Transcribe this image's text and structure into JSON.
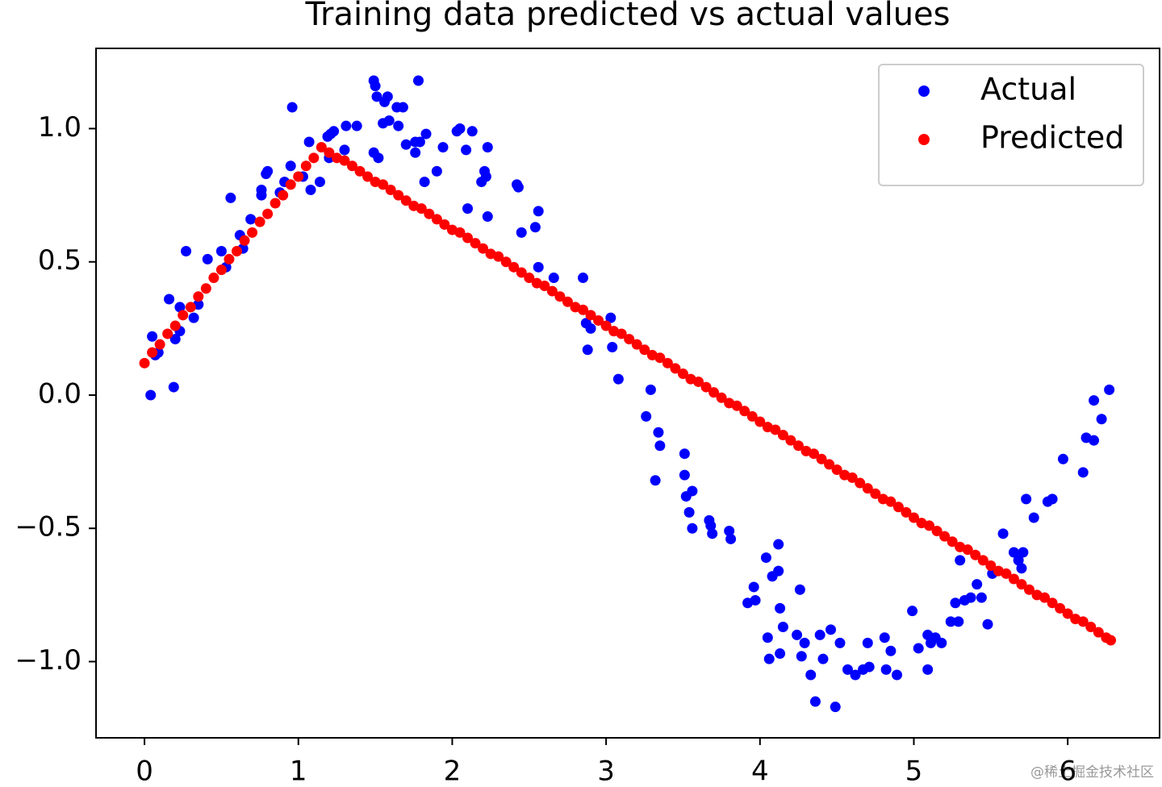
{
  "chart_data": {
    "type": "scatter",
    "title": "Training data predicted vs actual values",
    "xlim": [
      -0.315,
      6.597
    ],
    "ylim": [
      -1.286,
      1.301
    ],
    "xticks": [
      0,
      1,
      2,
      3,
      4,
      5,
      6
    ],
    "yticks": [
      {
        "value": -1.0,
        "label": "−1.0"
      },
      {
        "value": -0.5,
        "label": "−0.5"
      },
      {
        "value": 0.0,
        "label": "0.0"
      },
      {
        "value": 0.5,
        "label": "0.5"
      },
      {
        "value": 1.0,
        "label": "1.0"
      }
    ],
    "grid": false,
    "legend": "upper right",
    "watermark": "@稀土掘金技术社区",
    "series": [
      {
        "name": "Actual",
        "color": "#0000ff",
        "x": [
          0.04,
          0.05,
          0.07,
          0.09,
          0.16,
          0.19,
          0.2,
          0.23,
          0.23,
          0.27,
          0.32,
          0.35,
          0.41,
          0.5,
          0.53,
          0.56,
          0.62,
          0.64,
          0.69,
          0.76,
          0.76,
          0.79,
          0.8,
          0.88,
          0.91,
          0.95,
          0.96,
          1.03,
          1.07,
          1.08,
          1.14,
          1.19,
          1.2,
          1.21,
          1.23,
          1.3,
          1.31,
          1.38,
          1.49,
          1.49,
          1.5,
          1.51,
          1.52,
          1.55,
          1.56,
          1.58,
          1.59,
          1.64,
          1.65,
          1.68,
          1.7,
          1.76,
          1.76,
          1.78,
          1.79,
          1.83,
          1.82,
          1.9,
          1.94,
          2.03,
          2.05,
          2.09,
          2.1,
          2.13,
          2.19,
          2.21,
          2.22,
          2.23,
          2.23,
          2.42,
          2.43,
          2.56,
          2.54,
          2.45,
          2.56,
          2.66,
          2.85,
          2.87,
          2.88,
          2.9,
          3.03,
          3.04,
          3.08,
          3.26,
          3.29,
          3.32,
          3.34,
          3.35,
          3.51,
          3.51,
          3.52,
          3.54,
          3.56,
          3.56,
          3.67,
          3.68,
          3.69,
          3.8,
          3.81,
          3.92,
          3.97,
          3.96,
          4.04,
          4.05,
          4.06,
          4.08,
          4.12,
          4.12,
          4.13,
          4.13,
          4.15,
          4.26,
          4.24,
          4.27,
          4.29,
          4.33,
          4.36,
          4.39,
          4.41,
          4.46,
          4.49,
          4.52,
          4.57,
          4.62,
          4.67,
          4.7,
          4.71,
          4.81,
          4.82,
          4.85,
          4.89,
          4.99,
          5.03,
          5.09,
          5.09,
          5.11,
          5.14,
          5.18,
          5.24,
          5.27,
          5.3,
          5.29,
          5.33,
          5.37,
          5.41,
          5.44,
          5.48,
          5.51,
          5.58,
          5.65,
          5.68,
          5.7,
          5.71,
          5.73,
          5.78,
          5.87,
          5.9,
          5.97,
          6.1,
          6.12,
          6.17,
          6.17,
          6.22,
          6.27
        ],
        "values": [
          0.0,
          0.22,
          0.15,
          0.16,
          0.36,
          0.03,
          0.21,
          0.24,
          0.33,
          0.54,
          0.29,
          0.34,
          0.51,
          0.54,
          0.48,
          0.74,
          0.6,
          0.55,
          0.66,
          0.75,
          0.77,
          0.83,
          0.84,
          0.76,
          0.8,
          0.86,
          1.08,
          0.82,
          0.95,
          0.77,
          0.8,
          0.97,
          0.89,
          0.98,
          0.99,
          0.92,
          1.01,
          1.01,
          1.18,
          0.91,
          1.16,
          1.12,
          0.89,
          1.02,
          1.1,
          1.12,
          1.03,
          1.08,
          1.01,
          1.08,
          0.94,
          0.95,
          0.91,
          1.18,
          0.95,
          0.98,
          0.8,
          0.84,
          0.93,
          0.99,
          1.0,
          0.92,
          0.7,
          0.99,
          0.8,
          0.84,
          0.82,
          0.67,
          0.93,
          0.79,
          0.78,
          0.69,
          0.63,
          0.61,
          0.48,
          0.44,
          0.44,
          0.27,
          0.17,
          0.25,
          0.29,
          0.18,
          0.06,
          -0.08,
          0.02,
          -0.32,
          -0.14,
          -0.19,
          -0.22,
          -0.3,
          -0.38,
          -0.44,
          -0.5,
          -0.36,
          -0.47,
          -0.49,
          -0.52,
          -0.51,
          -0.54,
          -0.78,
          -0.77,
          -0.72,
          -0.61,
          -0.91,
          -0.99,
          -0.68,
          -0.66,
          -0.56,
          -0.97,
          -0.8,
          -0.87,
          -0.73,
          -0.9,
          -0.98,
          -0.93,
          -1.05,
          -1.15,
          -0.9,
          -0.99,
          -0.88,
          -1.17,
          -0.93,
          -1.03,
          -1.05,
          -1.03,
          -0.93,
          -1.02,
          -0.91,
          -1.03,
          -0.96,
          -1.05,
          -0.81,
          -0.95,
          -1.03,
          -0.9,
          -0.93,
          -0.91,
          -0.93,
          -0.85,
          -0.78,
          -0.62,
          -0.85,
          -0.77,
          -0.76,
          -0.71,
          -0.76,
          -0.86,
          -0.67,
          -0.52,
          -0.59,
          -0.62,
          -0.65,
          -0.59,
          -0.39,
          -0.46,
          -0.4,
          -0.39,
          -0.24,
          -0.29,
          -0.16,
          -0.17,
          -0.02,
          -0.09,
          0.02
        ]
      },
      {
        "name": "Predicted",
        "color": "#ff0000",
        "x": [
          0,
          0.05,
          0.1,
          0.15,
          0.2,
          0.25,
          0.3,
          0.35,
          0.4,
          0.45,
          0.5,
          0.55,
          0.6,
          0.65,
          0.7,
          0.75,
          0.8,
          0.85,
          0.9,
          0.95,
          1.0,
          1.05,
          1.1,
          1.15,
          1.2,
          1.25,
          1.3,
          1.35,
          1.4,
          1.45,
          1.5,
          1.55,
          1.6,
          1.65,
          1.7,
          1.75,
          1.8,
          1.85,
          1.9,
          1.95,
          2.0,
          2.05,
          2.1,
          2.15,
          2.2,
          2.25,
          2.3,
          2.35,
          2.4,
          2.45,
          2.5,
          2.55,
          2.6,
          2.65,
          2.7,
          2.75,
          2.8,
          2.85,
          2.9,
          2.95,
          3.0,
          3.05,
          3.1,
          3.15,
          3.2,
          3.25,
          3.3,
          3.35,
          3.4,
          3.45,
          3.5,
          3.55,
          3.6,
          3.65,
          3.7,
          3.75,
          3.8,
          3.85,
          3.9,
          3.95,
          4.0,
          4.05,
          4.1,
          4.15,
          4.2,
          4.25,
          4.3,
          4.35,
          4.4,
          4.45,
          4.5,
          4.55,
          4.6,
          4.65,
          4.7,
          4.75,
          4.8,
          4.85,
          4.9,
          4.95,
          5.0,
          5.05,
          5.1,
          5.15,
          5.2,
          5.25,
          5.3,
          5.35,
          5.4,
          5.45,
          5.5,
          5.55,
          5.6,
          5.65,
          5.7,
          5.75,
          5.8,
          5.85,
          5.9,
          5.95,
          6.0,
          6.05,
          6.1,
          6.15,
          6.2,
          6.25,
          6.28
        ],
        "values": [
          0.12,
          0.16,
          0.19,
          0.23,
          0.26,
          0.3,
          0.33,
          0.37,
          0.4,
          0.44,
          0.47,
          0.51,
          0.54,
          0.58,
          0.61,
          0.65,
          0.68,
          0.72,
          0.75,
          0.79,
          0.82,
          0.86,
          0.89,
          0.93,
          0.91,
          0.89,
          0.88,
          0.86,
          0.84,
          0.82,
          0.8,
          0.79,
          0.77,
          0.75,
          0.73,
          0.71,
          0.7,
          0.68,
          0.66,
          0.64,
          0.62,
          0.61,
          0.59,
          0.57,
          0.55,
          0.53,
          0.52,
          0.5,
          0.48,
          0.46,
          0.44,
          0.42,
          0.41,
          0.39,
          0.37,
          0.35,
          0.33,
          0.32,
          0.3,
          0.28,
          0.26,
          0.24,
          0.23,
          0.21,
          0.19,
          0.17,
          0.15,
          0.14,
          0.12,
          0.1,
          0.08,
          0.06,
          0.05,
          0.03,
          0.01,
          -0.01,
          -0.03,
          -0.04,
          -0.06,
          -0.08,
          -0.1,
          -0.12,
          -0.13,
          -0.15,
          -0.17,
          -0.19,
          -0.21,
          -0.22,
          -0.24,
          -0.26,
          -0.28,
          -0.3,
          -0.31,
          -0.33,
          -0.35,
          -0.37,
          -0.39,
          -0.4,
          -0.42,
          -0.44,
          -0.46,
          -0.48,
          -0.49,
          -0.51,
          -0.53,
          -0.55,
          -0.57,
          -0.58,
          -0.6,
          -0.62,
          -0.64,
          -0.66,
          -0.67,
          -0.69,
          -0.71,
          -0.73,
          -0.75,
          -0.76,
          -0.78,
          -0.8,
          -0.82,
          -0.84,
          -0.85,
          -0.87,
          -0.89,
          -0.91,
          -0.92
        ]
      }
    ]
  }
}
